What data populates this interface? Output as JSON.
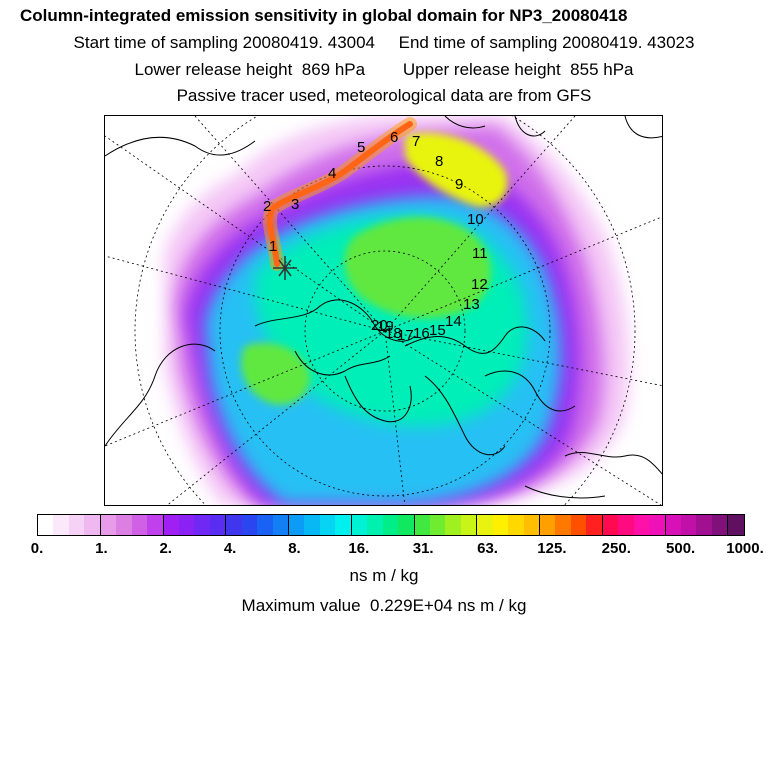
{
  "header": {
    "title": "Column-integrated emission sensitivity in global domain for NP3_20080418",
    "sampling": "Start time of sampling 20080419. 43004     End time of sampling 20080419. 43023",
    "release": "Lower release height  869 hPa        Upper release height  855 hPa",
    "tracer": "Passive tracer used, meteorological data are from GFS"
  },
  "map": {
    "track_labels": [
      "1",
      "2",
      "3",
      "4",
      "5",
      "6",
      "7",
      "8",
      "9",
      "10",
      "11",
      "12",
      "13",
      "14",
      "15",
      "16",
      "17",
      "18",
      "19",
      "20"
    ],
    "colors": {
      "land_outline": "#000000",
      "track": "#ff2a2a",
      "graticule": "#000000"
    }
  },
  "colorbar": {
    "colors": [
      "#ffffff",
      "#fbe9fb",
      "#f6d2f6",
      "#f0b8f0",
      "#e79be8",
      "#dc7fe2",
      "#d060e6",
      "#c040ee",
      "#a020f4",
      "#8a22f6",
      "#7028f4",
      "#5a2ef2",
      "#4036ee",
      "#2a46f0",
      "#1a62f4",
      "#1280f4",
      "#0c9cf6",
      "#08b8f4",
      "#06d4f2",
      "#00f0f0",
      "#00f2d4",
      "#00f0b0",
      "#00ee88",
      "#10e860",
      "#40e840",
      "#70ec30",
      "#a0f020",
      "#c8f418",
      "#e8f410",
      "#fff000",
      "#ffd800",
      "#ffbe00",
      "#ffa000",
      "#ff7800",
      "#ff5000",
      "#ff2020",
      "#ff0a50",
      "#ff0a80",
      "#ff10a8",
      "#f010b8",
      "#d810b8",
      "#c010a8",
      "#a01090",
      "#80107a",
      "#601060"
    ],
    "tick_labels": [
      "0.",
      "1.",
      "2.",
      "4.",
      "8.",
      "16.",
      "31.",
      "63.",
      "125.",
      "250.",
      "500.",
      "1000."
    ],
    "units": "ns m / kg"
  },
  "footer": {
    "maximum": "Maximum value  0.229E+04 ns m / kg"
  }
}
